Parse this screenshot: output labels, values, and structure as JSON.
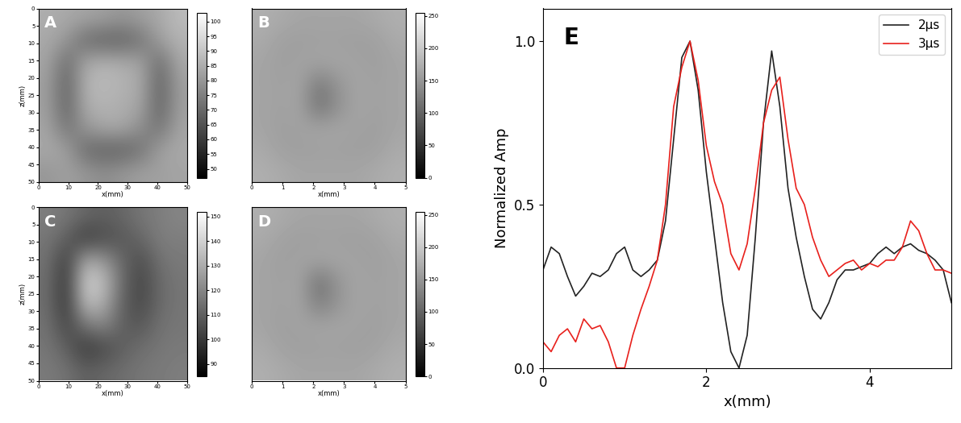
{
  "chart_data": [
    {
      "type": "heatmap",
      "panel": "A",
      "xlabel": "x(mm)",
      "ylabel": "z(mm)",
      "xlim": [
        0,
        50
      ],
      "ylim": [
        50,
        0
      ],
      "xticks": [
        0,
        10,
        20,
        30,
        40,
        50
      ],
      "yticks": [
        0,
        5,
        10,
        15,
        20,
        25,
        30,
        35,
        40,
        45,
        50
      ],
      "cells": [
        [
          85,
          84,
          83,
          82,
          80,
          82,
          84,
          88
        ],
        [
          84,
          80,
          70,
          68,
          68,
          72,
          82,
          86
        ],
        [
          83,
          70,
          84,
          86,
          85,
          83,
          70,
          84
        ],
        [
          82,
          68,
          86,
          88,
          86,
          84,
          68,
          82
        ],
        [
          82,
          68,
          85,
          86,
          85,
          83,
          68,
          82
        ],
        [
          83,
          72,
          80,
          84,
          84,
          78,
          72,
          83
        ],
        [
          84,
          82,
          70,
          68,
          68,
          72,
          82,
          84
        ],
        [
          80,
          82,
          80,
          78,
          80,
          82,
          82,
          83
        ]
      ],
      "color_range": [
        47,
        103
      ],
      "color_ticks": [
        50,
        55,
        60,
        65,
        70,
        75,
        80,
        85,
        90,
        95,
        100
      ]
    },
    {
      "type": "heatmap",
      "panel": "B",
      "xlabel": "x(mm)",
      "tick_labels": "x",
      "xlim": [
        0,
        5
      ],
      "ylim": [
        0,
        5
      ],
      "xticks": [
        0,
        1,
        2,
        3,
        4,
        5
      ],
      "cells": [
        [
          175,
          170,
          165,
          165,
          165,
          165,
          170,
          175
        ],
        [
          170,
          160,
          158,
          160,
          160,
          158,
          160,
          170
        ],
        [
          165,
          158,
          162,
          165,
          165,
          162,
          158,
          165
        ],
        [
          165,
          160,
          165,
          120,
          150,
          165,
          160,
          165
        ],
        [
          165,
          160,
          165,
          110,
          145,
          165,
          160,
          165
        ],
        [
          165,
          158,
          162,
          165,
          165,
          162,
          158,
          165
        ],
        [
          170,
          160,
          158,
          160,
          160,
          158,
          160,
          170
        ],
        [
          175,
          170,
          165,
          165,
          165,
          165,
          170,
          175
        ]
      ],
      "color_range": [
        0,
        255
      ],
      "color_ticks": [
        0,
        50,
        100,
        150,
        200,
        250
      ]
    },
    {
      "type": "heatmap",
      "panel": "C",
      "xlabel": "x(mm)",
      "ylabel": "z(mm)",
      "xlim": [
        0,
        50
      ],
      "ylim": [
        50,
        0
      ],
      "xticks": [
        0,
        10,
        20,
        30,
        40,
        50
      ],
      "yticks": [
        0,
        5,
        10,
        15,
        20,
        25,
        30,
        35,
        40,
        45,
        50
      ],
      "cells": [
        [
          118,
          116,
          112,
          110,
          112,
          116,
          118,
          120
        ],
        [
          116,
          110,
          100,
          105,
          108,
          112,
          118,
          118
        ],
        [
          115,
          100,
          130,
          125,
          112,
          105,
          115,
          117
        ],
        [
          114,
          98,
          140,
          135,
          112,
          103,
          113,
          116
        ],
        [
          114,
          98,
          135,
          130,
          110,
          104,
          113,
          116
        ],
        [
          115,
          103,
          115,
          120,
          110,
          108,
          115,
          116
        ],
        [
          116,
          110,
          100,
          104,
          110,
          114,
          116,
          117
        ],
        [
          117,
          115,
          110,
          112,
          114,
          116,
          117,
          118
        ]
      ],
      "color_range": [
        85,
        152
      ],
      "color_ticks": [
        90,
        100,
        110,
        120,
        130,
        140,
        150
      ]
    },
    {
      "type": "heatmap",
      "panel": "D",
      "xlabel": "x(mm)",
      "tick_labels": "x",
      "xlim": [
        0,
        5
      ],
      "ylim": [
        0,
        5
      ],
      "xticks": [
        0,
        1,
        2,
        3,
        4,
        5
      ],
      "cells": [
        [
          175,
          170,
          165,
          165,
          165,
          165,
          170,
          175
        ],
        [
          170,
          162,
          158,
          160,
          160,
          158,
          162,
          170
        ],
        [
          165,
          158,
          162,
          165,
          165,
          162,
          158,
          165
        ],
        [
          165,
          160,
          165,
          110,
          150,
          165,
          160,
          165
        ],
        [
          165,
          160,
          165,
          125,
          150,
          165,
          160,
          165
        ],
        [
          165,
          158,
          162,
          165,
          165,
          162,
          158,
          165
        ],
        [
          170,
          162,
          158,
          160,
          160,
          158,
          162,
          170
        ],
        [
          175,
          170,
          165,
          165,
          165,
          165,
          170,
          175
        ]
      ],
      "color_range": [
        0,
        255
      ],
      "color_ticks": [
        0,
        50,
        100,
        150,
        200,
        250
      ]
    },
    {
      "type": "line",
      "panel": "E",
      "xlabel": "x(mm)",
      "ylabel": "Normalized Amp",
      "xlim": [
        0,
        5
      ],
      "ylim": [
        0,
        1.1
      ],
      "xticks": [
        0,
        2,
        4
      ],
      "yticks": [
        {
          "value": 0,
          "label": "0.0"
        },
        {
          "value": 0.5,
          "label": "0.5"
        },
        {
          "value": 1,
          "label": "1.0"
        }
      ],
      "legend": "upper right",
      "grid": false,
      "x": [
        0,
        0.1,
        0.2,
        0.3,
        0.4,
        0.5,
        0.6,
        0.7,
        0.8,
        0.9,
        1.0,
        1.1,
        1.2,
        1.3,
        1.4,
        1.5,
        1.6,
        1.7,
        1.8,
        1.9,
        2.0,
        2.1,
        2.2,
        2.3,
        2.4,
        2.5,
        2.6,
        2.7,
        2.8,
        2.9,
        3.0,
        3.1,
        3.2,
        3.3,
        3.4,
        3.5,
        3.6,
        3.7,
        3.8,
        3.9,
        4.0,
        4.1,
        4.2,
        4.3,
        4.4,
        4.5,
        4.6,
        4.7,
        4.8,
        4.9,
        5.0
      ],
      "series": [
        {
          "name": "2μs",
          "color": "#222222",
          "values": [
            0.3,
            0.37,
            0.35,
            0.28,
            0.22,
            0.25,
            0.29,
            0.28,
            0.3,
            0.35,
            0.37,
            0.3,
            0.28,
            0.3,
            0.33,
            0.45,
            0.7,
            0.95,
            1.0,
            0.85,
            0.6,
            0.4,
            0.2,
            0.05,
            0.0,
            0.1,
            0.4,
            0.75,
            0.97,
            0.8,
            0.55,
            0.4,
            0.28,
            0.18,
            0.15,
            0.2,
            0.27,
            0.3,
            0.3,
            0.31,
            0.32,
            0.35,
            0.37,
            0.35,
            0.37,
            0.38,
            0.36,
            0.35,
            0.33,
            0.3,
            0.2
          ]
        },
        {
          "name": "3μs",
          "color": "#e8201c",
          "values": [
            0.08,
            0.05,
            0.1,
            0.12,
            0.08,
            0.15,
            0.12,
            0.13,
            0.08,
            0.0,
            0.0,
            0.1,
            0.18,
            0.25,
            0.33,
            0.5,
            0.8,
            0.92,
            1.0,
            0.88,
            0.68,
            0.57,
            0.5,
            0.35,
            0.3,
            0.38,
            0.55,
            0.75,
            0.85,
            0.89,
            0.7,
            0.55,
            0.5,
            0.4,
            0.33,
            0.28,
            0.3,
            0.32,
            0.33,
            0.3,
            0.32,
            0.31,
            0.33,
            0.33,
            0.37,
            0.45,
            0.42,
            0.35,
            0.3,
            0.3,
            0.29
          ]
        }
      ]
    }
  ]
}
